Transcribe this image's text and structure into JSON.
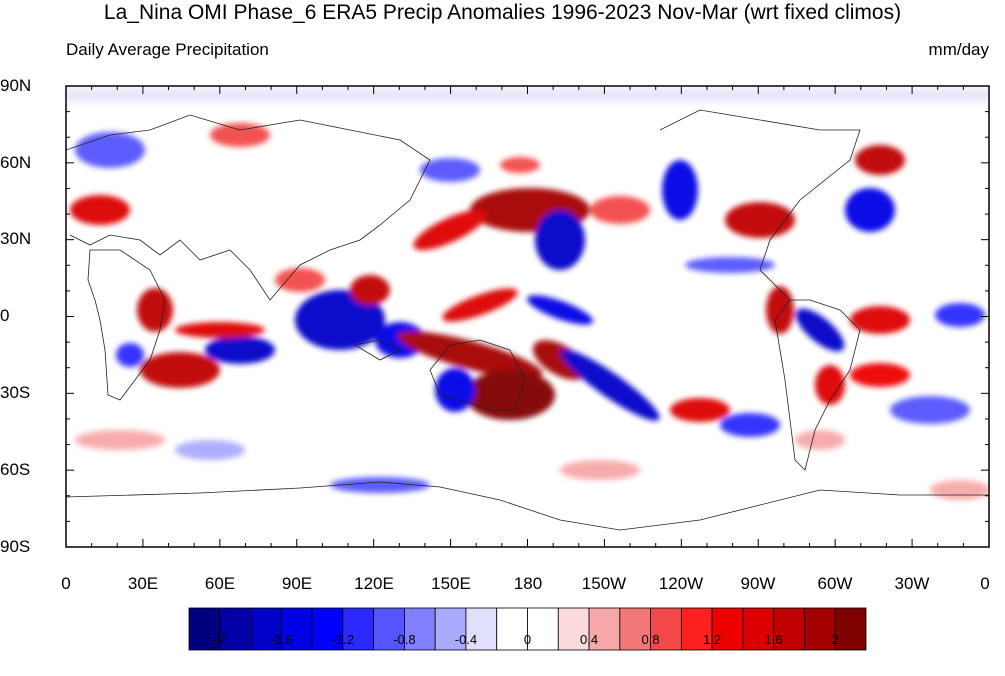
{
  "title": "La_Nina OMI Phase_6 ERA5 Precip Anomalies 1996-2023 Nov-Mar (wrt fixed climos)",
  "subtitle_left": "Daily Average Precipitation",
  "subtitle_right": "mm/day",
  "lat_labels": [
    "90N",
    "60N",
    "30N",
    "0",
    "30S",
    "60S",
    "90S"
  ],
  "lon_labels": [
    "0",
    "30E",
    "60E",
    "90E",
    "120E",
    "150E",
    "180",
    "150W",
    "120W",
    "90W",
    "60W",
    "30W",
    "0"
  ],
  "colorbar": {
    "colors": [
      "#00007f",
      "#0000a6",
      "#0000c8",
      "#0000e6",
      "#0000ff",
      "#2a2aff",
      "#5555ff",
      "#8080ff",
      "#aaaaff",
      "#e0e0fa",
      "#ffffff",
      "#ffffff",
      "#fadadd",
      "#f7a8a8",
      "#f27878",
      "#f24848",
      "#ff2020",
      "#ee0000",
      "#dd0000",
      "#c00000",
      "#a50000",
      "#800000"
    ],
    "tick_labels": [
      "-2",
      "-1.6",
      "-1.2",
      "-0.8",
      "-0.4",
      "0",
      "0.4",
      "0.8",
      "1.2",
      "1.6",
      "2"
    ]
  }
}
